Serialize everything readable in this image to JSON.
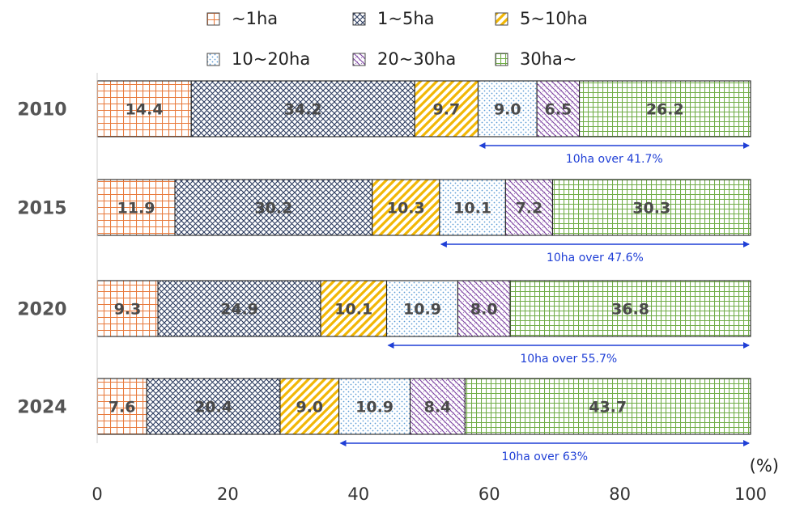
{
  "chart_data": {
    "type": "bar",
    "orientation": "horizontal",
    "stacked": true,
    "categories": [
      "2010",
      "2015",
      "2020",
      "2024"
    ],
    "series": [
      {
        "name": "~1ha",
        "values": [
          14.4,
          11.9,
          9.3,
          7.6
        ],
        "color": "#e87a3c",
        "pattern": "grid-square"
      },
      {
        "name": "1~5ha",
        "values": [
          34.2,
          30.2,
          24.9,
          20.4
        ],
        "color": "#2a3a5e",
        "pattern": "crosshatch"
      },
      {
        "name": "5~10ha",
        "values": [
          9.7,
          10.3,
          10.1,
          9.0
        ],
        "color": "#f2b705",
        "pattern": "diagonal"
      },
      {
        "name": "10~20ha",
        "values": [
          9.0,
          10.1,
          10.9,
          10.9
        ],
        "color": "#5b9bd5",
        "pattern": "dots"
      },
      {
        "name": "20~30ha",
        "values": [
          6.5,
          7.2,
          8.0,
          8.4
        ],
        "color": "#7a3fa0",
        "pattern": "diagonal-reverse"
      },
      {
        "name": "30ha~",
        "values": [
          26.2,
          30.3,
          36.8,
          43.7
        ],
        "color": "#70ad47",
        "pattern": "fine-grid"
      }
    ],
    "value_labels": [
      [
        "14.4",
        "34.2",
        "9.7",
        "9.0",
        "6.5",
        "26.2"
      ],
      [
        "11.9",
        "30.2",
        "10.3",
        "10.1",
        "7.2",
        "30.3"
      ],
      [
        "9.3",
        "24.9",
        "10.1",
        "10.9",
        "8.0",
        "36.8"
      ],
      [
        "7.6",
        "20.4",
        "9.0",
        "10.9",
        "8.4",
        "43.7"
      ]
    ],
    "annotations": [
      {
        "text": "10ha over  41.7%",
        "from": 58.3,
        "to": 100
      },
      {
        "text": "10ha over  47.6%",
        "from": 52.4,
        "to": 100
      },
      {
        "text": "10ha over  55.7%",
        "from": 44.3,
        "to": 100
      },
      {
        "text": "10ha over  63%",
        "from": 37.0,
        "to": 100
      }
    ],
    "annotation_color": "#1f3fd6",
    "xlim": [
      0,
      100
    ],
    "xticks": [
      "0",
      "20",
      "40",
      "60",
      "80",
      "100"
    ],
    "xunit": "(%)",
    "legend_position": "top",
    "grid": false
  }
}
